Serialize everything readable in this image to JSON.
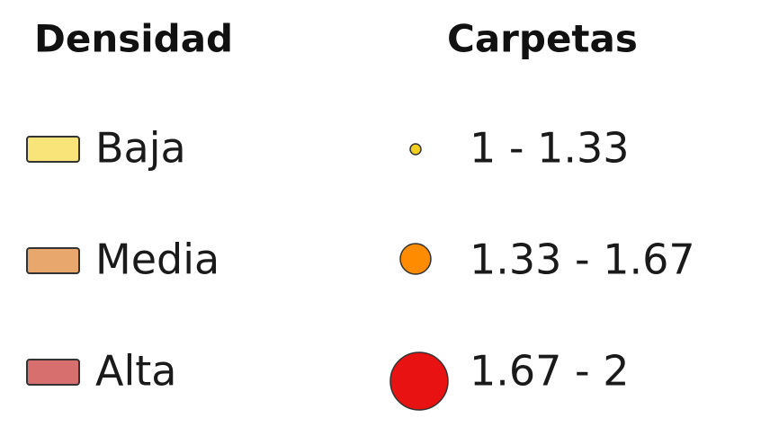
{
  "legend": {
    "density": {
      "title": "Densidad",
      "items": [
        {
          "label": "Baja",
          "color": "#f9e479"
        },
        {
          "label": "Media",
          "color": "#e8a76c"
        },
        {
          "label": "Alta",
          "color": "#d86f6f"
        }
      ]
    },
    "folders": {
      "title": "Carpetas",
      "items": [
        {
          "label": "1 - 1.33",
          "color": "#f2cf1f"
        },
        {
          "label": "1.33 - 1.67",
          "color": "#ff8c00"
        },
        {
          "label": "1.67 - 2",
          "color": "#e81212"
        }
      ]
    }
  }
}
